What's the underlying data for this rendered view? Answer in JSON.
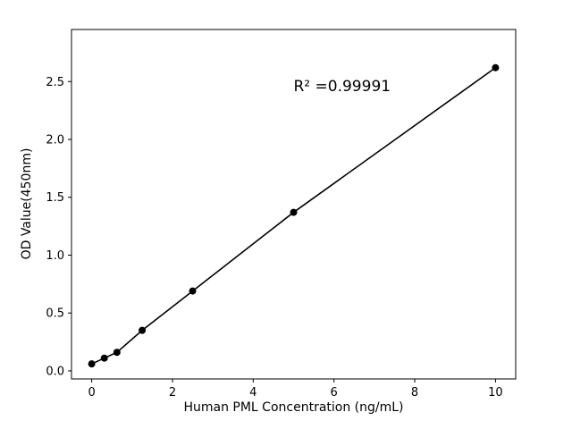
{
  "chart_data": {
    "type": "scatter",
    "title": "",
    "xlabel": "Human PML Concentration (ng/mL)",
    "ylabel": "OD Value(450nm)",
    "x": [
      0,
      0.3125,
      0.625,
      1.25,
      2.5,
      5,
      10
    ],
    "y": [
      0.06,
      0.11,
      0.16,
      0.35,
      0.69,
      1.37,
      2.62
    ],
    "line_through_points": true,
    "marker": "circle",
    "marker_color": "#000000",
    "line_color": "#000000",
    "xlim": [
      -0.5,
      10.5
    ],
    "ylim": [
      -0.07,
      2.95
    ],
    "xticks": [
      0,
      2,
      4,
      6,
      8,
      10
    ],
    "xtick_labels": [
      "0",
      "2",
      "4",
      "6",
      "8",
      "10"
    ],
    "yticks": [
      0.0,
      0.5,
      1.0,
      1.5,
      2.0,
      2.5
    ],
    "ytick_labels": [
      "0.0",
      "0.5",
      "1.0",
      "1.5",
      "2.0",
      "2.5"
    ],
    "grid": false,
    "legend": null,
    "annotation": {
      "text": "R² =0.99991",
      "x": 5.0,
      "y": 2.4
    }
  }
}
